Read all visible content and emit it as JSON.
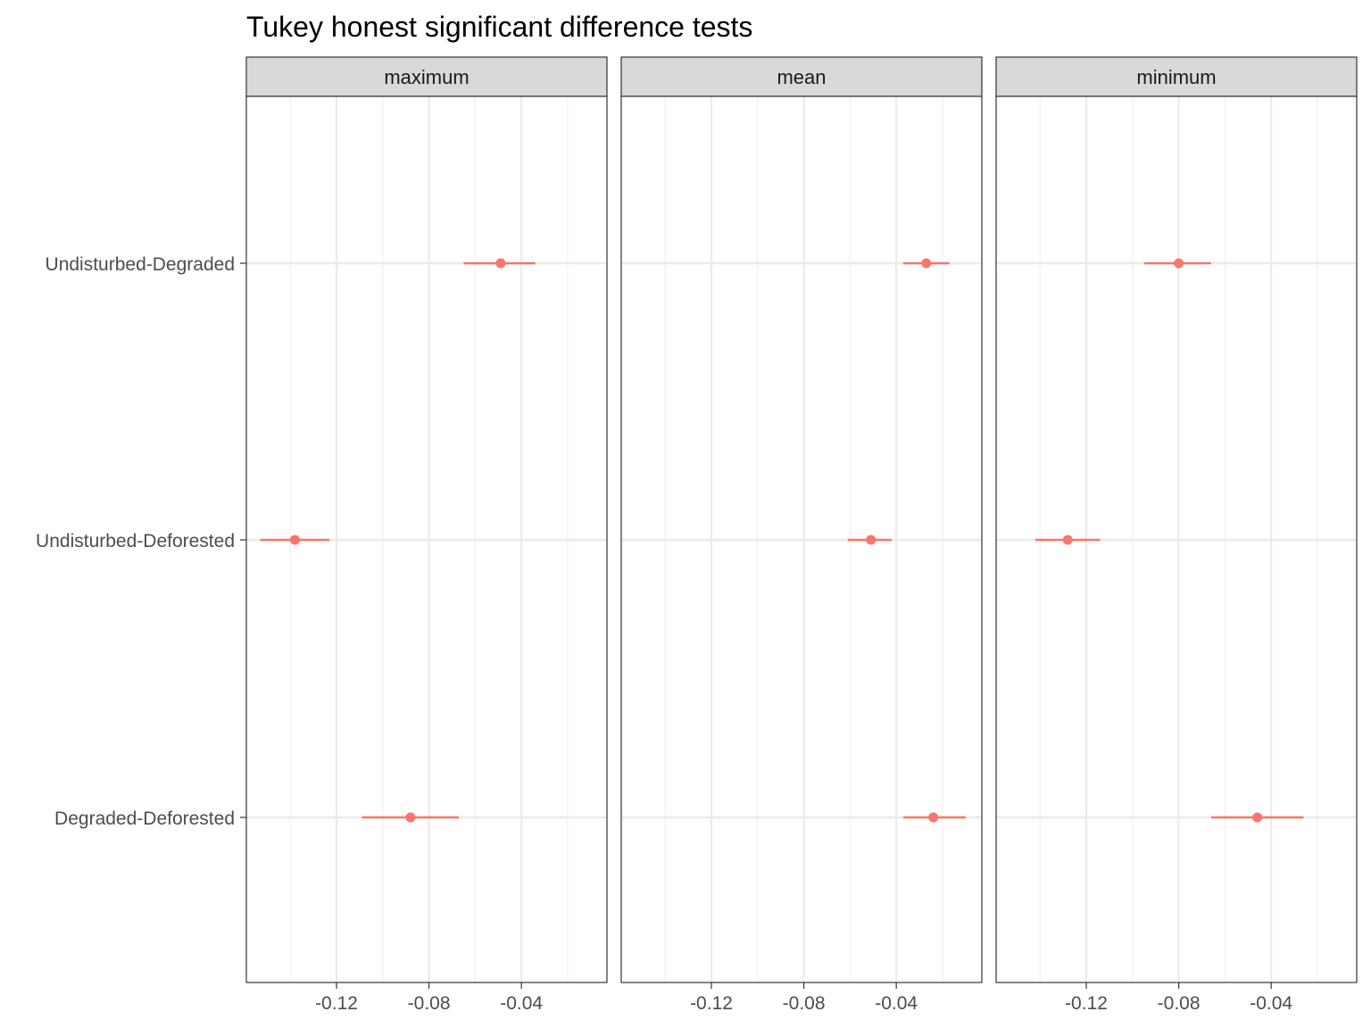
{
  "chart_data": {
    "type": "scatter",
    "title": "Tukey honest significant difference tests",
    "xlabel": "",
    "ylabel": "",
    "xlim": [
      -0.159,
      -0.003
    ],
    "x_ticks": [
      -0.12,
      -0.08,
      -0.04
    ],
    "x_tick_labels": [
      "-0.12",
      "-0.08",
      "-0.04"
    ],
    "x_minor_ticks": [
      -0.14,
      -0.1,
      -0.06,
      -0.02
    ],
    "categories": [
      "Undisturbed-Degraded",
      "Undisturbed-Deforested",
      "Degraded-Deforested"
    ],
    "grid": true,
    "point_color": "#F8766D",
    "panels": [
      {
        "label": "maximum",
        "estimates": [
          -0.049,
          -0.138,
          -0.088
        ],
        "lower": [
          -0.065,
          -0.153,
          -0.109
        ],
        "upper": [
          -0.034,
          -0.123,
          -0.067
        ]
      },
      {
        "label": "mean",
        "estimates": [
          -0.027,
          -0.051,
          -0.024
        ],
        "lower": [
          -0.037,
          -0.061,
          -0.037
        ],
        "upper": [
          -0.017,
          -0.042,
          -0.01
        ]
      },
      {
        "label": "minimum",
        "estimates": [
          -0.08,
          -0.128,
          -0.046
        ],
        "lower": [
          -0.095,
          -0.142,
          -0.066
        ],
        "upper": [
          -0.066,
          -0.114,
          -0.026
        ]
      }
    ]
  }
}
